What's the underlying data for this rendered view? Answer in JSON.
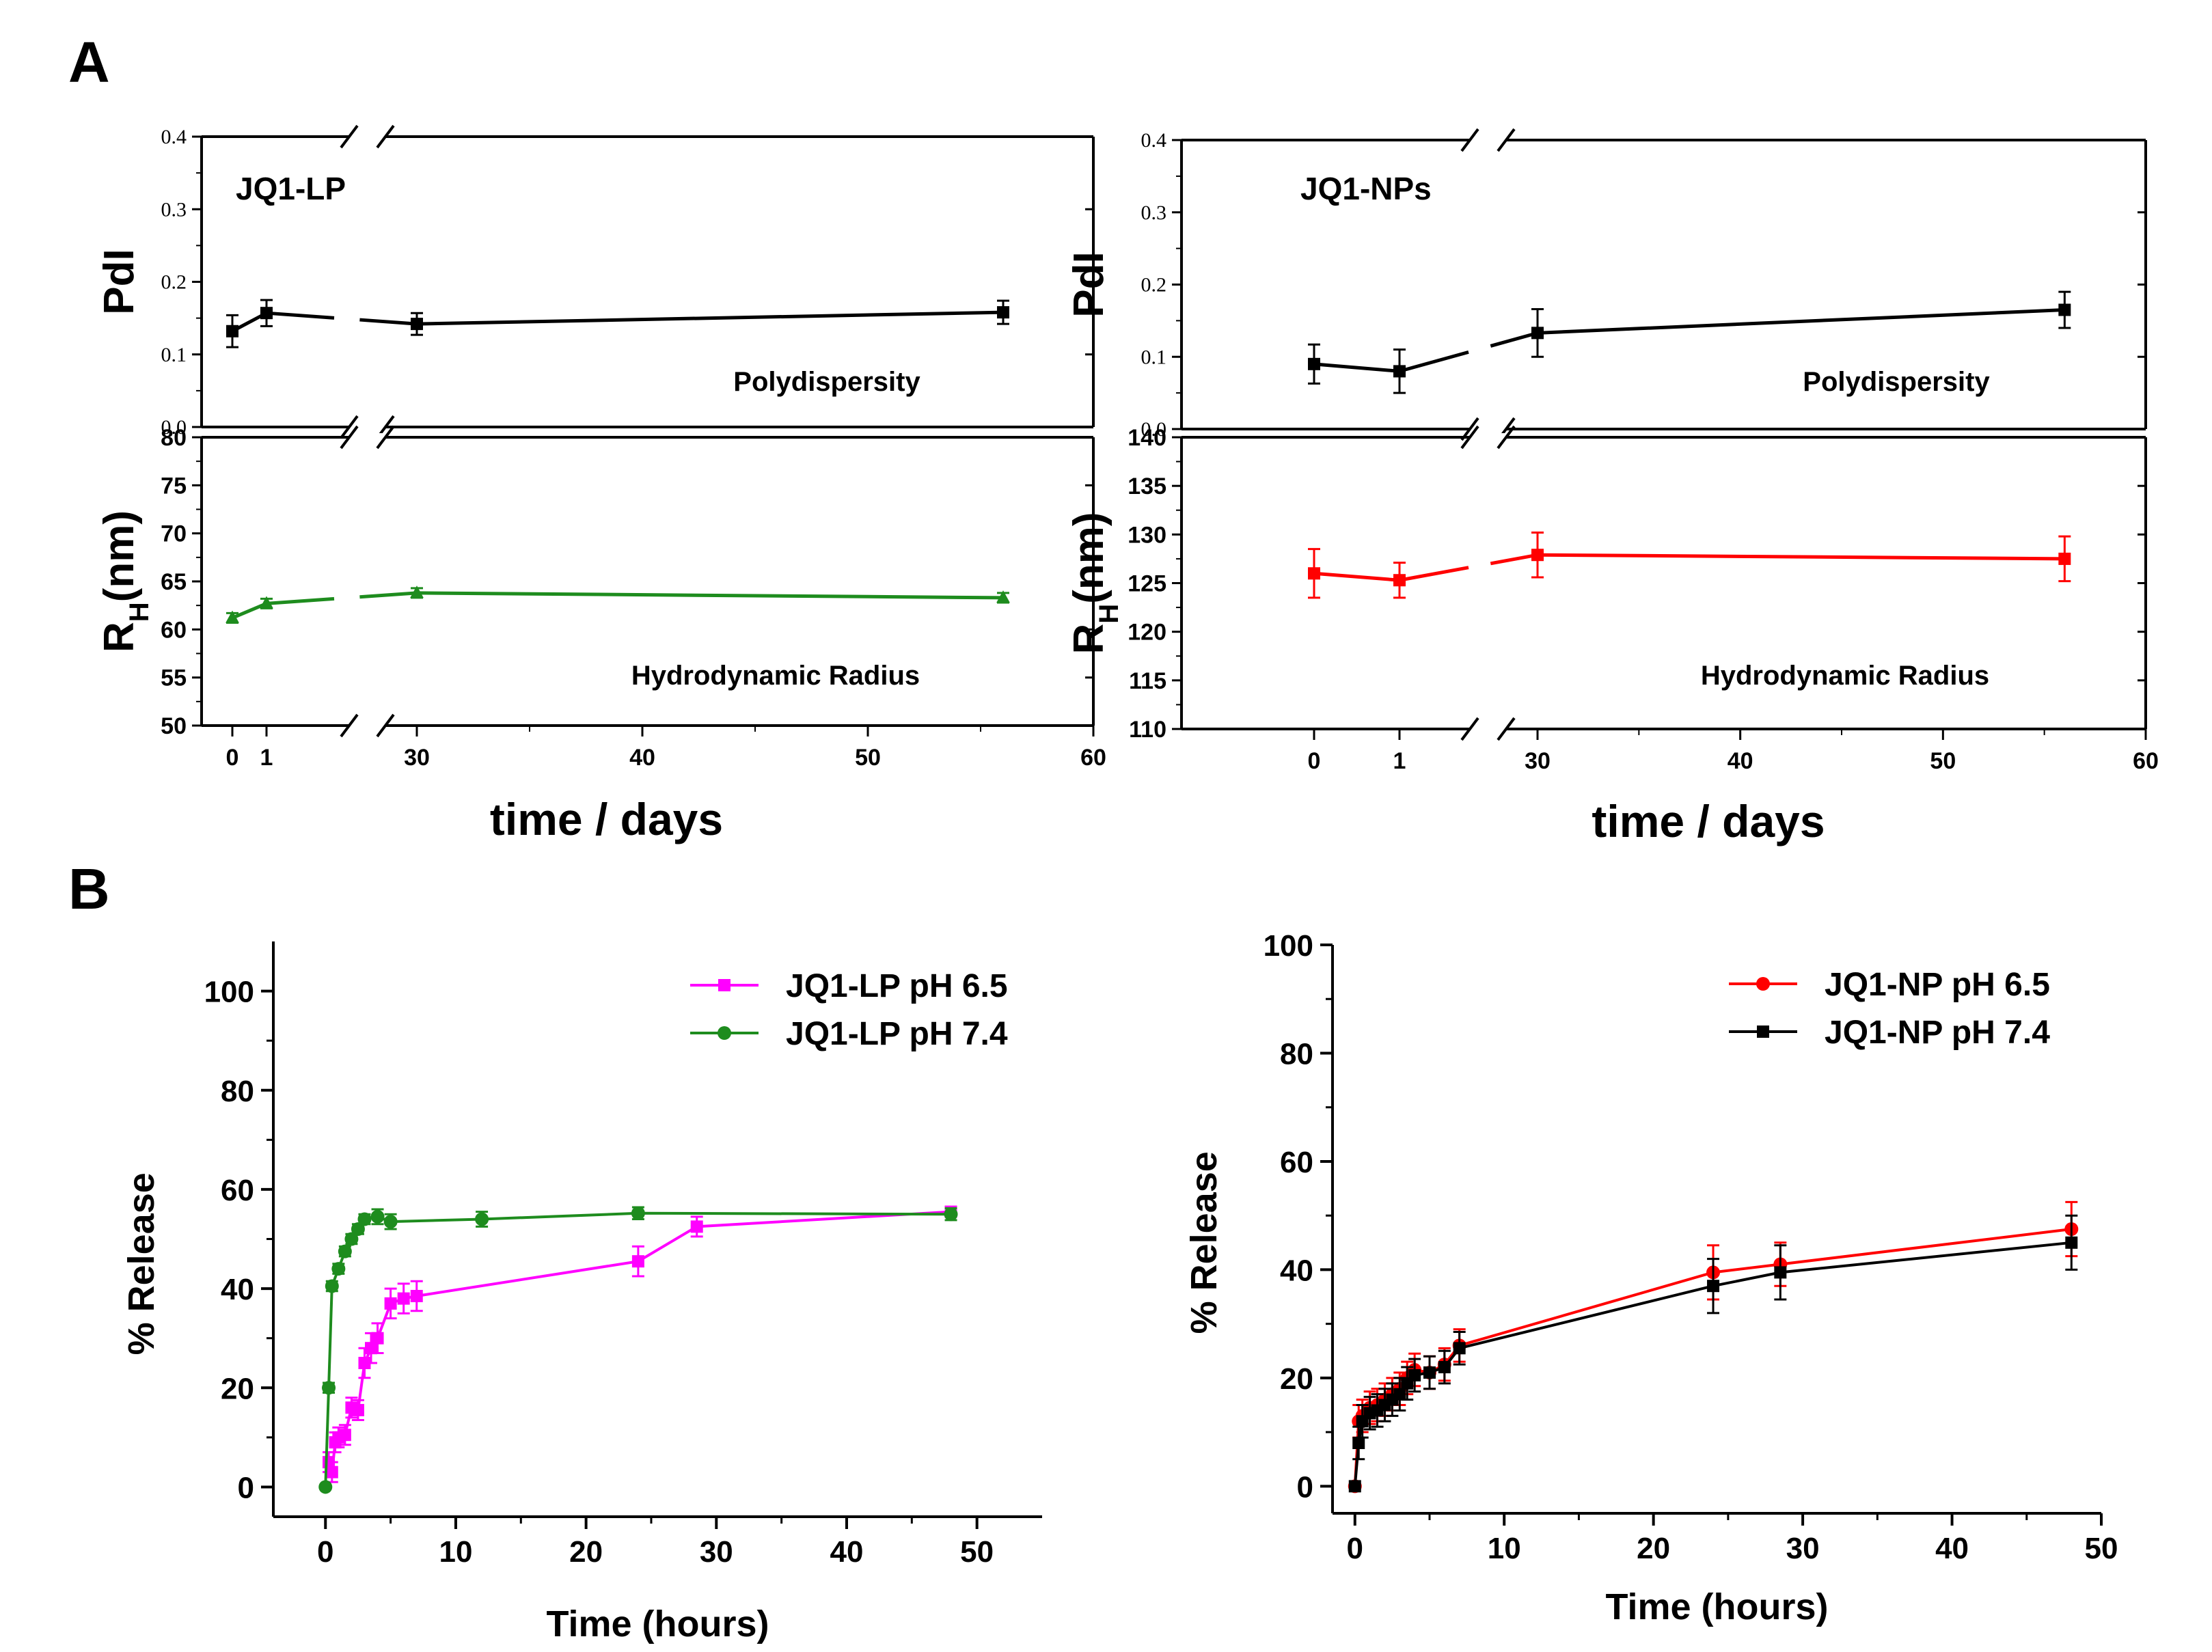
{
  "panels": {
    "A": "A",
    "B": "B"
  },
  "chart_data": [
    {
      "id": "lp-pdi",
      "type": "line",
      "title": "JQ1-LP",
      "annotation": "Polydispersity",
      "ylabel": "PdI",
      "ylim": [
        0,
        0.4
      ],
      "yticks": [
        "0.0",
        "0.1",
        "0.2",
        "0.3",
        "0.4"
      ],
      "xlim": [
        0,
        60
      ],
      "axis_break": "between 1 and 30 days",
      "color": "#000000",
      "marker": "square",
      "series": [
        {
          "name": "PdI",
          "x": [
            0,
            1,
            30,
            56
          ],
          "y": [
            0.132,
            0.157,
            0.142,
            0.158
          ],
          "err": [
            0.022,
            0.018,
            0.015,
            0.016
          ]
        }
      ]
    },
    {
      "id": "lp-rh",
      "type": "line",
      "annotation": "Hydrodynamic Radius",
      "ylabel": "R",
      "ylabel_sub": "H",
      "ylabel_unit": "(nm)",
      "ylim": [
        50,
        80
      ],
      "yticks": [
        "50",
        "55",
        "60",
        "65",
        "70",
        "75",
        "80"
      ],
      "xlim": [
        0,
        60
      ],
      "xticks": [
        "0",
        "1",
        "30",
        "40",
        "50",
        "60"
      ],
      "xlabel": "time / days",
      "color": "#1e8c1e",
      "marker": "triangle",
      "series": [
        {
          "name": "RH",
          "x": [
            0,
            1,
            30,
            56
          ],
          "y": [
            61.2,
            62.7,
            63.8,
            63.3
          ],
          "err": [
            0.5,
            0.5,
            0.5,
            0.5
          ]
        }
      ]
    },
    {
      "id": "np-pdi",
      "type": "line",
      "title": "JQ1-NPs",
      "annotation": "Polydispersity",
      "ylabel": "PdI",
      "ylim": [
        0,
        0.4
      ],
      "yticks": [
        "0.0",
        "0.1",
        "0.2",
        "0.3",
        "0.4"
      ],
      "xlim": [
        0,
        60
      ],
      "axis_break": "between 1 and 30 days",
      "color": "#000000",
      "marker": "square",
      "series": [
        {
          "name": "PdI",
          "x": [
            0,
            1,
            30,
            56
          ],
          "y": [
            0.09,
            0.08,
            0.133,
            0.165
          ],
          "err": [
            0.027,
            0.03,
            0.033,
            0.025
          ]
        }
      ]
    },
    {
      "id": "np-rh",
      "type": "line",
      "annotation": "Hydrodynamic Radius",
      "ylabel": "R",
      "ylabel_sub": "H",
      "ylabel_unit": "(nm)",
      "ylim": [
        110,
        140
      ],
      "yticks": [
        "110",
        "115",
        "120",
        "125",
        "130",
        "135",
        "140"
      ],
      "xlim": [
        0,
        60
      ],
      "xticks": [
        "0",
        "1",
        "30",
        "40",
        "50",
        "60"
      ],
      "xlabel": "time / days",
      "color": "#ff0000",
      "marker": "square",
      "series": [
        {
          "name": "RH",
          "x": [
            0,
            1,
            30,
            56
          ],
          "y": [
            126.0,
            125.3,
            127.9,
            127.5
          ],
          "err": [
            2.5,
            1.8,
            2.3,
            2.3
          ]
        }
      ]
    },
    {
      "id": "lp-release",
      "type": "line",
      "xlabel": "Time (hours)",
      "ylabel": "% Release",
      "xlim": [
        -4,
        55
      ],
      "ylim": [
        -6,
        110
      ],
      "xticks": [
        0,
        10,
        20,
        30,
        40,
        50
      ],
      "yticks": [
        0,
        20,
        40,
        60,
        80,
        100
      ],
      "legend": "top-right",
      "series": [
        {
          "name": "JQ1-LP pH 6.5",
          "color": "#ff00ff",
          "marker": "square",
          "x": [
            0.25,
            0.5,
            0.75,
            1,
            1.5,
            2,
            2.5,
            3,
            3.5,
            4,
            5,
            6,
            7,
            24,
            28.5,
            48
          ],
          "y": [
            5,
            3,
            9,
            10,
            10.5,
            16,
            15.5,
            25,
            28,
            30,
            37,
            38,
            38.5,
            45.5,
            52.5,
            55.5
          ],
          "err": [
            2,
            2,
            2,
            2,
            2,
            2,
            2,
            3,
            3,
            3,
            3,
            3,
            3,
            3,
            2,
            1
          ]
        },
        {
          "name": "JQ1-LP pH 7.4",
          "color": "#1e8c1e",
          "marker": "circle",
          "x": [
            0,
            0.25,
            0.5,
            1,
            1.5,
            2,
            2.5,
            3,
            4,
            5,
            12,
            24,
            48
          ],
          "y": [
            0,
            20,
            40.5,
            44,
            47.5,
            50,
            52,
            54,
            54.5,
            53.5,
            54,
            55.2,
            55
          ],
          "err": [
            0,
            1,
            1,
            1,
            1,
            1,
            1,
            1,
            1.5,
            1.5,
            1.5,
            1.2,
            1.2
          ]
        }
      ]
    },
    {
      "id": "np-release",
      "type": "line",
      "xlabel": "Time (hours)",
      "ylabel": "% Release",
      "xlim": [
        -1.5,
        50
      ],
      "ylim": [
        -5,
        100
      ],
      "xticks": [
        0,
        10,
        20,
        30,
        40,
        50
      ],
      "yticks": [
        0,
        20,
        40,
        60,
        80,
        100
      ],
      "legend": "top-right",
      "series": [
        {
          "name": "JQ1-NP pH 6.5",
          "color": "#ff0000",
          "marker": "circle",
          "x": [
            0,
            0.25,
            0.5,
            1,
            1.5,
            2,
            2.5,
            3,
            3.5,
            4,
            5,
            6,
            7,
            24,
            28.5,
            48
          ],
          "y": [
            0,
            12,
            13,
            14.5,
            15,
            16,
            17,
            18,
            20,
            21.5,
            21,
            22.5,
            26,
            39.5,
            41,
            47.5
          ],
          "err": [
            0,
            3,
            3,
            3,
            3,
            3,
            3,
            3,
            3,
            3,
            3,
            3,
            3,
            5,
            4,
            5
          ]
        },
        {
          "name": "JQ1-NP pH 7.4",
          "color": "#000000",
          "marker": "square",
          "x": [
            0,
            0.25,
            0.5,
            1,
            1.5,
            2,
            2.5,
            3,
            3.5,
            4,
            5,
            6,
            7,
            24,
            28.5,
            48
          ],
          "y": [
            0,
            8,
            12,
            13.5,
            14,
            15,
            16,
            17,
            19,
            20.5,
            21,
            22,
            25.5,
            37,
            39.5,
            45
          ],
          "err": [
            0,
            3,
            3,
            3,
            3,
            3,
            3,
            3,
            3,
            3,
            3,
            3,
            3,
            5,
            5,
            5
          ]
        }
      ]
    }
  ]
}
